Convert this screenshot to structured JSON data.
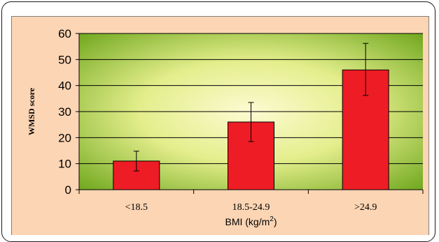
{
  "chart_data": {
    "type": "bar",
    "categories": [
      "<18.5",
      "18.5-24.9",
      ">24.9"
    ],
    "values": [
      11,
      26,
      46
    ],
    "error_low": [
      7.2,
      18.5,
      36.2
    ],
    "error_high": [
      14.8,
      33.5,
      56.2
    ],
    "title": "",
    "xlabel": "BMI (kg/m",
    "xlabel_sup": "2",
    "xlabel_suffix": ")",
    "ylabel": "WMSD score",
    "ylim": [
      0,
      60
    ],
    "yticks": [
      "0",
      "10",
      "20",
      "30",
      "40",
      "50",
      "60"
    ],
    "grid": true,
    "legend": "none",
    "colors": {
      "bar": "#ee1c25",
      "plot_edge": "#6ca51a",
      "plot_center": "#fcfbd2",
      "panel": "#fcd5b4"
    }
  }
}
